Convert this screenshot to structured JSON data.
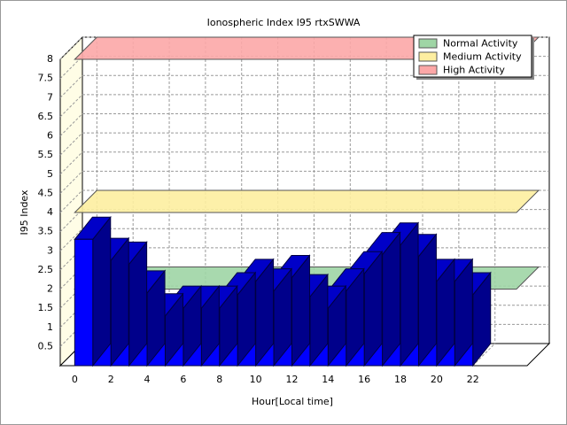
{
  "chart_data": {
    "type": "bar3d",
    "title": "Ionospheric Index I95 rtxSWWA",
    "x_label": "Hour[Local time]",
    "y_label": "I95 Index",
    "x": [
      0,
      1,
      2,
      3,
      4,
      5,
      6,
      7,
      8,
      9,
      10,
      11,
      12,
      13,
      14,
      15,
      16,
      17,
      18,
      19,
      20,
      21
    ],
    "values": [
      3.3,
      2.75,
      2.65,
      1.9,
      1.3,
      1.5,
      1.5,
      1.5,
      1.85,
      2.2,
      1.95,
      2.3,
      1.8,
      1.5,
      1.95,
      2.4,
      2.9,
      3.15,
      2.85,
      2.2,
      2.2,
      1.85
    ],
    "color": "#0000ff",
    "thresholds": [
      {
        "name": "Normal Activity",
        "color": "#9fd5a5",
        "value": 2
      },
      {
        "name": "Medium Activity",
        "color": "#fdeea0",
        "value": 4
      },
      {
        "name": "High Activity",
        "color": "#fca7a7",
        "value": 8
      }
    ],
    "xlim": [
      -0.8,
      25
    ],
    "xticks": [
      0,
      2,
      4,
      6,
      8,
      10,
      12,
      14,
      16,
      18,
      20,
      22
    ],
    "ylim": [
      0,
      8
    ],
    "yticks": [
      0.5,
      1,
      1.5,
      2,
      2.5,
      3,
      3.5,
      4,
      4.5,
      5,
      5.5,
      6,
      6.5,
      7,
      7.5,
      8
    ],
    "grid": true,
    "legend": "top-right"
  }
}
